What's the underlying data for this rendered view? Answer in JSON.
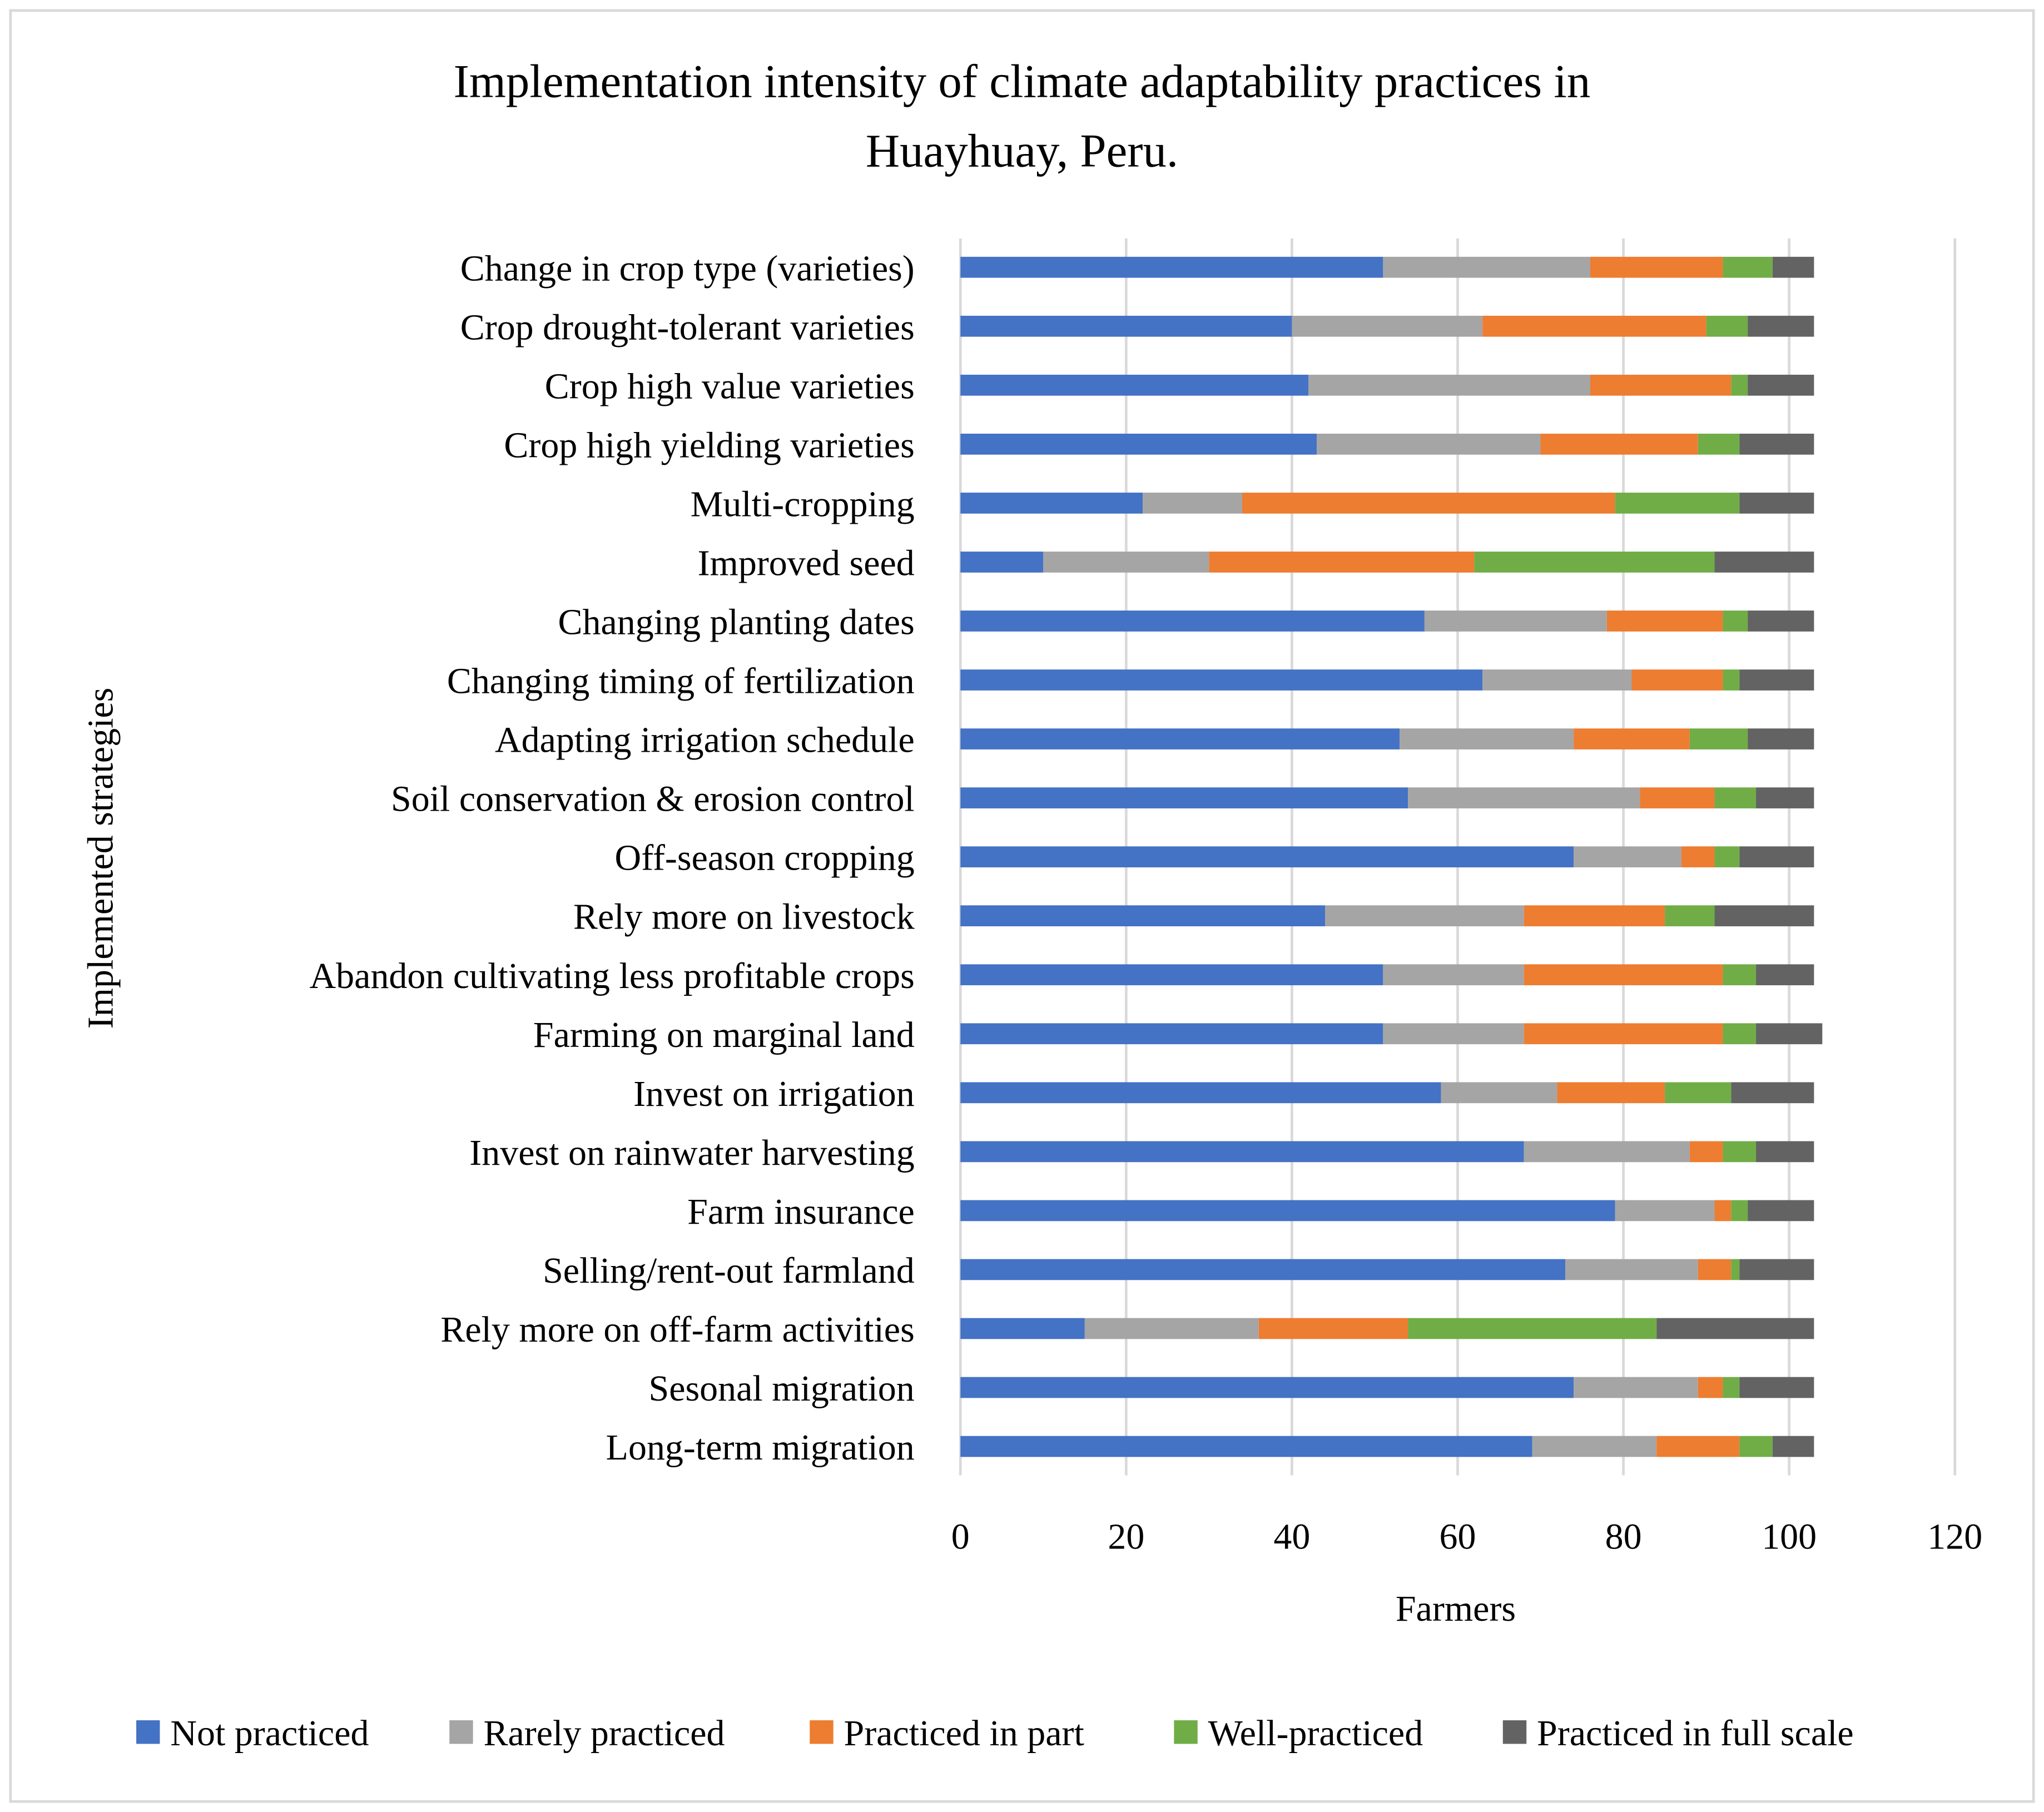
{
  "chart_data": {
    "type": "bar",
    "orientation": "horizontal",
    "stacked": true,
    "title": "Implementation intensity of climate adaptability practices in Huayhuay, Peru.",
    "title_lines": [
      "Implementation intensity of climate adaptability practices in",
      "Huayhuay, Peru."
    ],
    "xlabel": "Farmers",
    "ylabel": "Implemented strategies",
    "xlim": [
      0,
      120
    ],
    "xticks": [
      0,
      20,
      40,
      60,
      80,
      100,
      120
    ],
    "grid": true,
    "legend_position": "bottom",
    "categories": [
      "Change in crop type (varieties)",
      "Crop drought-tolerant varieties",
      "Crop high value varieties",
      "Crop high yielding varieties",
      "Multi-cropping",
      "Improved seed",
      "Changing planting dates",
      "Changing timing of fertilization",
      "Adapting irrigation schedule",
      "Soil conservation & erosion control",
      "Off-season cropping",
      "Rely more on livestock",
      "Abandon cultivating less profitable crops",
      "Farming on marginal land",
      "Invest on irrigation",
      "Invest on rainwater harvesting",
      "Farm insurance",
      "Selling/rent-out farmland",
      "Rely more on off-farm activities",
      "Sesonal migration",
      "Long-term migration"
    ],
    "series": [
      {
        "name": "Not practiced",
        "color": "#4472c4",
        "values": [
          51,
          40,
          42,
          43,
          22,
          10,
          56,
          63,
          53,
          54,
          74,
          44,
          51,
          51,
          58,
          68,
          79,
          73,
          15,
          74,
          69
        ]
      },
      {
        "name": "Rarely practiced",
        "color": "#a5a5a5",
        "values": [
          25,
          23,
          34,
          27,
          12,
          20,
          22,
          18,
          21,
          28,
          13,
          24,
          17,
          17,
          14,
          20,
          12,
          16,
          21,
          15,
          15
        ]
      },
      {
        "name": "Practiced in part",
        "color": "#ed7d31",
        "values": [
          16,
          27,
          17,
          19,
          45,
          32,
          14,
          11,
          14,
          9,
          4,
          17,
          24,
          24,
          13,
          4,
          2,
          4,
          18,
          3,
          10
        ]
      },
      {
        "name": "Well-practiced",
        "color": "#70ad47",
        "values": [
          6,
          5,
          2,
          5,
          15,
          29,
          3,
          2,
          7,
          5,
          3,
          6,
          4,
          4,
          8,
          4,
          2,
          1,
          30,
          2,
          4
        ]
      },
      {
        "name": "Practiced in full scale",
        "color": "#636363",
        "values": [
          5,
          8,
          8,
          9,
          9,
          12,
          8,
          9,
          8,
          7,
          9,
          12,
          7,
          8,
          10,
          7,
          8,
          9,
          19,
          9,
          5
        ]
      }
    ]
  }
}
